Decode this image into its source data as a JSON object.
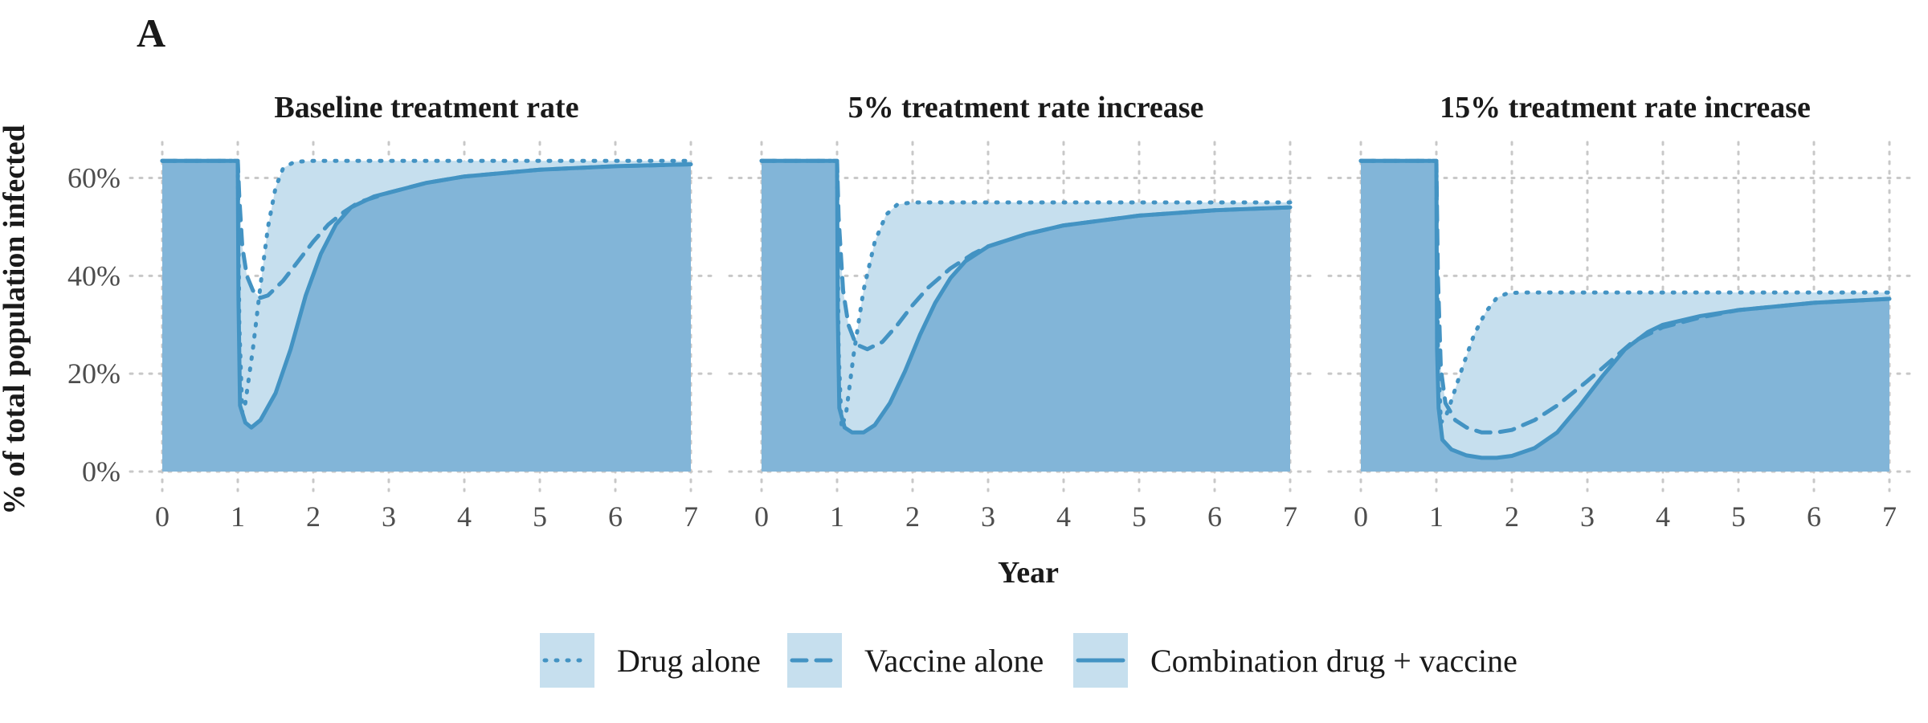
{
  "figure": {
    "panel_letter": "A",
    "y_axis_label": "% of total population infected",
    "x_axis_label": "Year"
  },
  "colors": {
    "line": "#4393c3",
    "area_dark": "#82b5d8",
    "area_light": "#c6dfee",
    "grid": "#c8c8c8",
    "text": "#1a1a1a",
    "tick_text": "#4d4d4d"
  },
  "legend": {
    "items": [
      {
        "label": "Drug alone",
        "line_style": "dotted"
      },
      {
        "label": "Vaccine alone",
        "line_style": "dashed"
      },
      {
        "label": "Combination drug + vaccine",
        "line_style": "solid"
      }
    ],
    "position": "bottom"
  },
  "chart_data": [
    {
      "type": "line",
      "title": "Baseline treatment rate",
      "xlabel": "Year",
      "ylabel": "% of total population infected",
      "x_ticks": [
        "0",
        "1",
        "2",
        "3",
        "4",
        "5",
        "6",
        "7"
      ],
      "y_ticks": [
        "0%",
        "20%",
        "40%",
        "60%"
      ],
      "xlim": [
        0,
        7
      ],
      "ylim": [
        0,
        66
      ],
      "grid": true,
      "series": [
        {
          "name": "Drug alone",
          "style": "dotted",
          "points": [
            [
              0,
              63.5
            ],
            [
              1,
              63.5
            ],
            [
              1.02,
              30
            ],
            [
              1.06,
              12
            ],
            [
              1.1,
              14
            ],
            [
              1.2,
              25
            ],
            [
              1.3,
              38
            ],
            [
              1.4,
              50
            ],
            [
              1.5,
              58
            ],
            [
              1.6,
              62
            ],
            [
              1.75,
              63.3
            ],
            [
              2,
              63.5
            ],
            [
              3,
              63.5
            ],
            [
              4,
              63.5
            ],
            [
              5,
              63.5
            ],
            [
              6,
              63.5
            ],
            [
              7,
              63.5
            ]
          ]
        },
        {
          "name": "Vaccine alone",
          "style": "dashed",
          "points": [
            [
              0,
              63.5
            ],
            [
              1,
              63.5
            ],
            [
              1.02,
              56
            ],
            [
              1.06,
              46
            ],
            [
              1.12,
              40
            ],
            [
              1.2,
              37
            ],
            [
              1.3,
              35.5
            ],
            [
              1.4,
              36
            ],
            [
              1.6,
              39
            ],
            [
              1.8,
              43
            ],
            [
              2,
              47
            ],
            [
              2.2,
              50.5
            ],
            [
              2.4,
              53
            ],
            [
              2.6,
              55
            ],
            [
              3,
              57
            ],
            [
              3.5,
              59
            ],
            [
              4,
              60.3
            ],
            [
              5,
              61.7
            ],
            [
              6,
              62.4
            ],
            [
              7,
              62.8
            ]
          ]
        },
        {
          "name": "Combination drug + vaccine",
          "style": "solid",
          "points": [
            [
              0,
              63.5
            ],
            [
              1,
              63.5
            ],
            [
              1.01,
              35
            ],
            [
              1.03,
              13.5
            ],
            [
              1.1,
              10
            ],
            [
              1.18,
              9
            ],
            [
              1.3,
              10.5
            ],
            [
              1.5,
              16
            ],
            [
              1.7,
              25
            ],
            [
              1.9,
              36
            ],
            [
              2.1,
              44.5
            ],
            [
              2.3,
              50.5
            ],
            [
              2.5,
              54
            ],
            [
              2.8,
              56.2
            ],
            [
              3,
              57
            ],
            [
              3.5,
              59
            ],
            [
              4,
              60.3
            ],
            [
              5,
              61.7
            ],
            [
              6,
              62.4
            ],
            [
              7,
              62.8
            ]
          ]
        }
      ]
    },
    {
      "type": "line",
      "title": "5% treatment rate increase",
      "xlabel": "Year",
      "ylabel": "% of total population infected",
      "x_ticks": [
        "0",
        "1",
        "2",
        "3",
        "4",
        "5",
        "6",
        "7"
      ],
      "y_ticks": [
        "0%",
        "20%",
        "40%",
        "60%"
      ],
      "xlim": [
        0,
        7
      ],
      "ylim": [
        0,
        66
      ],
      "grid": true,
      "series": [
        {
          "name": "Drug alone",
          "style": "dotted",
          "points": [
            [
              0,
              63.5
            ],
            [
              1,
              63.5
            ],
            [
              1.02,
              25
            ],
            [
              1.06,
              9
            ],
            [
              1.12,
              12
            ],
            [
              1.22,
              24
            ],
            [
              1.35,
              37
            ],
            [
              1.5,
              47
            ],
            [
              1.65,
              52.5
            ],
            [
              1.8,
              54.6
            ],
            [
              2,
              55
            ],
            [
              3,
              55
            ],
            [
              4,
              55
            ],
            [
              5,
              55
            ],
            [
              6,
              55
            ],
            [
              7,
              55
            ]
          ]
        },
        {
          "name": "Vaccine alone",
          "style": "dashed",
          "points": [
            [
              0,
              63.5
            ],
            [
              1,
              63.5
            ],
            [
              1.02,
              52
            ],
            [
              1.08,
              37
            ],
            [
              1.15,
              30
            ],
            [
              1.25,
              26
            ],
            [
              1.4,
              25
            ],
            [
              1.6,
              26.5
            ],
            [
              1.8,
              30
            ],
            [
              2,
              34
            ],
            [
              2.2,
              37.5
            ],
            [
              2.5,
              41.5
            ],
            [
              2.8,
              44.5
            ],
            [
              3,
              46
            ],
            [
              3.5,
              48.5
            ],
            [
              4,
              50.3
            ],
            [
              5,
              52.3
            ],
            [
              6,
              53.4
            ],
            [
              7,
              54
            ]
          ]
        },
        {
          "name": "Combination drug + vaccine",
          "style": "solid",
          "points": [
            [
              0,
              63.5
            ],
            [
              1,
              63.5
            ],
            [
              1.01,
              32
            ],
            [
              1.03,
              13
            ],
            [
              1.1,
              9
            ],
            [
              1.2,
              8
            ],
            [
              1.35,
              8
            ],
            [
              1.5,
              9.5
            ],
            [
              1.7,
              14
            ],
            [
              1.9,
              20.5
            ],
            [
              2.1,
              28
            ],
            [
              2.3,
              34.5
            ],
            [
              2.5,
              39.5
            ],
            [
              2.7,
              43
            ],
            [
              3,
              46
            ],
            [
              3.5,
              48.5
            ],
            [
              4,
              50.3
            ],
            [
              5,
              52.3
            ],
            [
              6,
              53.4
            ],
            [
              7,
              54
            ]
          ]
        }
      ]
    },
    {
      "type": "line",
      "title": "15% treatment rate increase",
      "xlabel": "Year",
      "ylabel": "% of total population infected",
      "x_ticks": [
        "0",
        "1",
        "2",
        "3",
        "4",
        "5",
        "6",
        "7"
      ],
      "y_ticks": [
        "0%",
        "20%",
        "40%",
        "60%"
      ],
      "xlim": [
        0,
        7
      ],
      "ylim": [
        0,
        66
      ],
      "grid": true,
      "series": [
        {
          "name": "Drug alone",
          "style": "dotted",
          "points": [
            [
              0,
              63.5
            ],
            [
              1,
              63.5
            ],
            [
              1.02,
              25
            ],
            [
              1.06,
              10
            ],
            [
              1.12,
              11
            ],
            [
              1.22,
              15.5
            ],
            [
              1.35,
              21.5
            ],
            [
              1.5,
              28
            ],
            [
              1.65,
              32.5
            ],
            [
              1.8,
              35.5
            ],
            [
              1.95,
              36.5
            ],
            [
              2.2,
              36.6
            ],
            [
              3,
              36.6
            ],
            [
              4,
              36.6
            ],
            [
              5,
              36.6
            ],
            [
              6,
              36.6
            ],
            [
              7,
              36.6
            ]
          ]
        },
        {
          "name": "Vaccine alone",
          "style": "dashed",
          "points": [
            [
              0,
              63.5
            ],
            [
              1,
              63.5
            ],
            [
              1.02,
              40
            ],
            [
              1.06,
              21
            ],
            [
              1.12,
              14
            ],
            [
              1.25,
              10.5
            ],
            [
              1.4,
              9
            ],
            [
              1.6,
              8
            ],
            [
              1.8,
              8
            ],
            [
              2,
              8.5
            ],
            [
              2.3,
              10.5
            ],
            [
              2.6,
              13.5
            ],
            [
              3,
              18.5
            ],
            [
              3.3,
              22.5
            ],
            [
              3.6,
              26.5
            ],
            [
              4,
              29.5
            ],
            [
              4.5,
              31.5
            ],
            [
              5,
              33
            ],
            [
              6,
              34.5
            ],
            [
              7,
              35.3
            ]
          ]
        },
        {
          "name": "Combination drug + vaccine",
          "style": "solid",
          "points": [
            [
              0,
              63.5
            ],
            [
              1,
              63.5
            ],
            [
              1.01,
              25
            ],
            [
              1.03,
              13
            ],
            [
              1.08,
              6.5
            ],
            [
              1.2,
              4.5
            ],
            [
              1.4,
              3.3
            ],
            [
              1.6,
              2.8
            ],
            [
              1.8,
              2.8
            ],
            [
              2,
              3.2
            ],
            [
              2.3,
              4.8
            ],
            [
              2.6,
              8
            ],
            [
              2.9,
              13.5
            ],
            [
              3.2,
              19.5
            ],
            [
              3.5,
              25
            ],
            [
              3.8,
              28.5
            ],
            [
              4,
              30
            ],
            [
              4.5,
              31.8
            ],
            [
              5,
              33
            ],
            [
              6,
              34.5
            ],
            [
              7,
              35.3
            ]
          ]
        }
      ]
    }
  ]
}
